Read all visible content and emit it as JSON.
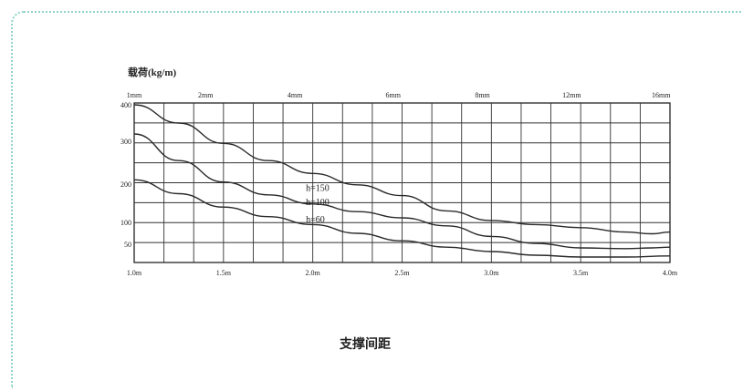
{
  "chart_data": {
    "type": "line",
    "ylabel": "载荷(kg/m)",
    "xlabel": "支撑间距",
    "x_ticks": [
      "1.0m",
      "1.5m",
      "2.0m",
      "2.5m",
      "3.0m",
      "3.5m",
      "4.0m"
    ],
    "x_tick_values": [
      1.0,
      1.5,
      2.0,
      2.5,
      3.0,
      3.5,
      4.0
    ],
    "top_ticks": [
      "1mm",
      "2mm",
      "4mm",
      "6mm",
      "8mm",
      "12mm",
      "16mm"
    ],
    "top_tick_values": [
      1.0,
      1.4,
      1.9,
      2.45,
      2.95,
      3.45,
      3.95
    ],
    "y_ticks": [
      "400",
      "300",
      "200",
      "100",
      "50"
    ],
    "y_tick_values": [
      400,
      300,
      200,
      100,
      50
    ],
    "xlim": [
      1.0,
      4.0
    ],
    "ylim": [
      0,
      400
    ],
    "grid": true,
    "series": [
      {
        "name": "h=150",
        "label_x": 1.9,
        "label_y": 182,
        "x": [
          1.0,
          1.25,
          1.5,
          1.75,
          2.0,
          2.25,
          2.5,
          2.75,
          3.0,
          3.25,
          3.5,
          3.75,
          3.9,
          4.0
        ],
        "y": [
          400,
          350,
          295,
          255,
          225,
          198,
          170,
          130,
          105,
          95,
          88,
          78,
          74,
          78
        ]
      },
      {
        "name": "h=100",
        "label_x": 1.9,
        "label_y": 145,
        "x": [
          1.0,
          1.25,
          1.5,
          1.75,
          2.0,
          2.25,
          2.5,
          2.75,
          3.0,
          3.25,
          3.5,
          3.75,
          3.9,
          4.0
        ],
        "y": [
          320,
          255,
          205,
          172,
          148,
          128,
          112,
          92,
          68,
          52,
          40,
          38,
          40,
          42
        ]
      },
      {
        "name": "h=60",
        "label_x": 1.9,
        "label_y": 100,
        "x": [
          1.0,
          1.25,
          1.5,
          1.75,
          2.0,
          2.25,
          2.5,
          2.75,
          3.0,
          3.25,
          3.5,
          3.75,
          4.0
        ],
        "y": [
          210,
          175,
          140,
          115,
          95,
          75,
          58,
          42,
          30,
          20,
          15,
          15,
          18
        ]
      }
    ]
  }
}
